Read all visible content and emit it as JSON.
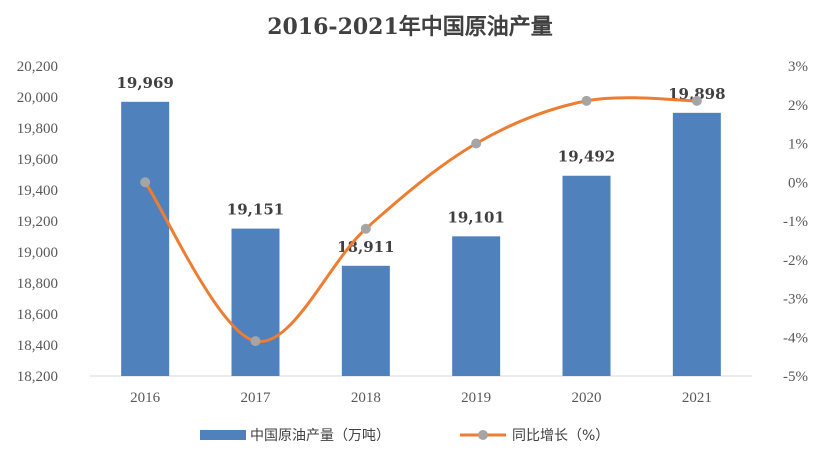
{
  "chart_data": {
    "type": "bar",
    "title": "2016-2021年中国原油产量",
    "categories": [
      "2016",
      "2017",
      "2018",
      "2019",
      "2020",
      "2021"
    ],
    "series": [
      {
        "name": "中国原油产量（万吨）",
        "type": "bar",
        "axis": "left",
        "values": [
          19969,
          19151,
          18911,
          19101,
          19492,
          19898
        ],
        "labels": [
          "19,969",
          "19,151",
          "18,911",
          "19,101",
          "19,492",
          "19,898"
        ],
        "color": "#4F81BD"
      },
      {
        "name": "同比增长（%）",
        "type": "line",
        "axis": "right",
        "values": [
          0.0,
          -4.1,
          -1.2,
          1.0,
          2.1,
          2.1
        ],
        "color": "#ED7D31",
        "marker_color": "#A5A5A5"
      }
    ],
    "y_left": {
      "ylim": [
        18200,
        20200
      ],
      "ticks": [
        "20,200",
        "20,000",
        "19,800",
        "19,600",
        "19,400",
        "19,200",
        "19,000",
        "18,800",
        "18,600",
        "18,400",
        "18,200"
      ],
      "tick_values": [
        20200,
        20000,
        19800,
        19600,
        19400,
        19200,
        19000,
        18800,
        18600,
        18400,
        18200
      ]
    },
    "y_right": {
      "ylim": [
        -5,
        3
      ],
      "ticks": [
        "3%",
        "2%",
        "1%",
        "0%",
        "-1%",
        "-2%",
        "-3%",
        "-4%",
        "-5%"
      ],
      "tick_values": [
        3,
        2,
        1,
        0,
        -1,
        -2,
        -3,
        -4,
        -5
      ]
    },
    "grid": false,
    "legend": "bottom"
  }
}
